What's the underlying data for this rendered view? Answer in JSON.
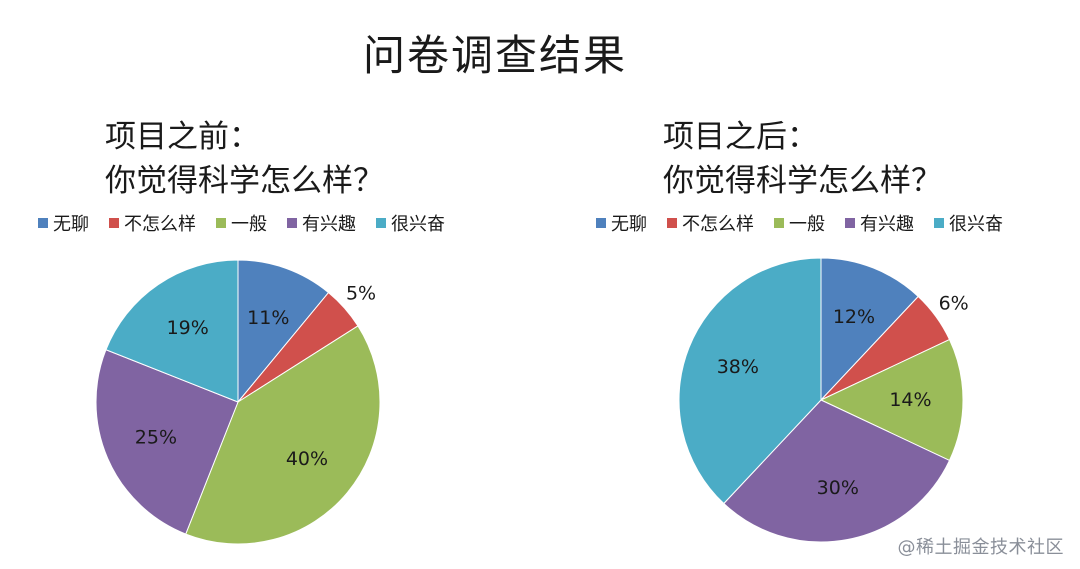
{
  "title": "问卷调查结果",
  "watermark": "@稀土掘金技术社区",
  "colors": {
    "无聊": "#4F81BD",
    "不怎么样": "#D0504C",
    "一般": "#9BBB59",
    "有兴趣": "#8064A2",
    "很兴奋": "#4BACC6"
  },
  "chart_data": [
    {
      "type": "pie",
      "title_line1": "项目之前：",
      "title_line2": "你觉得科学怎么样？",
      "categories": [
        "无聊",
        "不怎么样",
        "一般",
        "有兴趣",
        "很兴奋"
      ],
      "values": [
        11,
        5,
        40,
        25,
        19
      ],
      "labels": [
        "11%",
        "5%",
        "40%",
        "25%",
        "19%"
      ],
      "legend_position": "top"
    },
    {
      "type": "pie",
      "title_line1": "项目之后：",
      "title_line2": "你觉得科学怎么样？",
      "categories": [
        "无聊",
        "不怎么样",
        "一般",
        "有兴趣",
        "很兴奋"
      ],
      "values": [
        12,
        6,
        14,
        30,
        38
      ],
      "labels": [
        "12%",
        "6%",
        "14%",
        "30%",
        "38%"
      ],
      "legend_position": "top"
    }
  ]
}
